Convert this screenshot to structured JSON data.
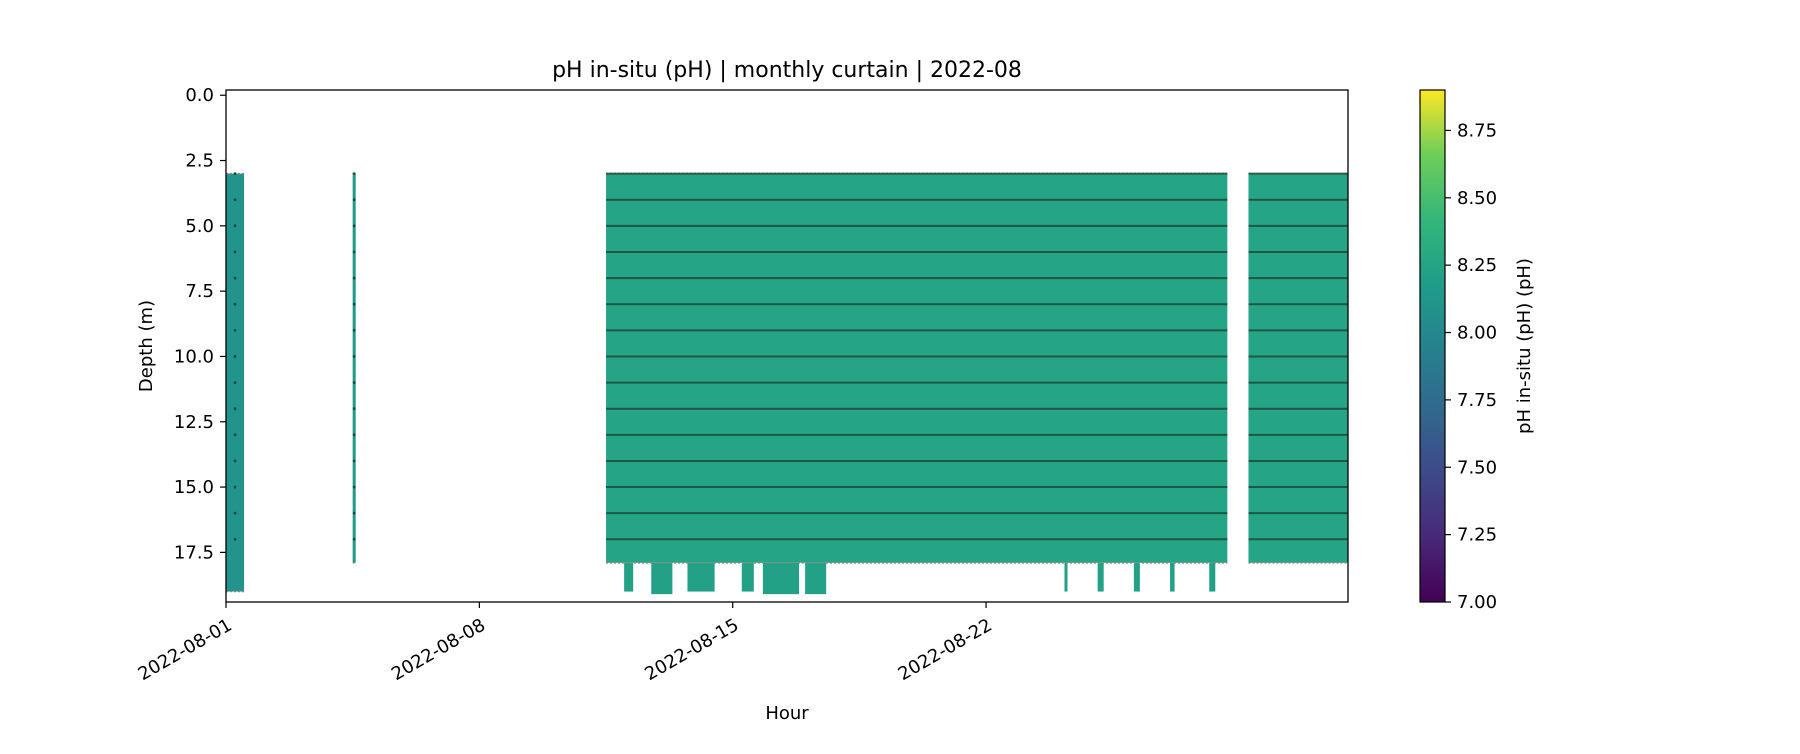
{
  "chart_data": {
    "type": "heatmap",
    "title": "pH in-situ (pH) | monthly curtain | 2022-08",
    "xlabel": "Hour",
    "ylabel": "Depth (m)",
    "x_tick_labels": [
      "2022-08-01",
      "2022-08-08",
      "2022-08-15",
      "2022-08-22"
    ],
    "x_tick_dates": [
      "2022-08-01",
      "2022-08-08",
      "2022-08-15",
      "2022-08-22"
    ],
    "xlim": [
      "2022-08-01",
      "2022-09-01"
    ],
    "y_tick_labels": [
      "0.0",
      "2.5",
      "5.0",
      "7.5",
      "10.0",
      "12.5",
      "15.0",
      "17.5"
    ],
    "y_ticks": [
      0.0,
      2.5,
      5.0,
      7.5,
      10.0,
      12.5,
      15.0,
      17.5
    ],
    "ylim": [
      19.4,
      -0.2
    ],
    "y_inverted": true,
    "colorbar": {
      "label": "pH in-situ (pH) (pH)",
      "colormap": "viridis",
      "range": [
        7.0,
        8.9
      ],
      "tick_labels": [
        "7.00",
        "7.25",
        "7.50",
        "7.75",
        "8.00",
        "8.25",
        "8.50",
        "8.75"
      ],
      "ticks": [
        7.0,
        7.25,
        7.5,
        7.75,
        8.0,
        8.25,
        8.5,
        8.75
      ]
    },
    "measurement_depths": [
      3,
      4,
      5,
      6,
      7,
      8,
      9,
      10,
      11,
      12,
      13,
      14,
      15,
      16,
      17
    ],
    "data_blocks": [
      {
        "start": "2022-08-01",
        "end": "2022-08-01T12:00",
        "depth_top": 3.0,
        "depth_bottom": 19.0,
        "ph": 8.1
      },
      {
        "start": "2022-08-04T12:00",
        "end": "2022-08-04T14:00",
        "depth_top": 3.0,
        "depth_bottom": 17.9,
        "ph": 8.15
      },
      {
        "start": "2022-08-11T12:00",
        "end": "2022-08-28T16:00",
        "depth_top": 3.0,
        "depth_bottom": 17.9,
        "ph": 8.25
      },
      {
        "start": "2022-08-29T06:00",
        "end": "2022-09-01",
        "depth_top": 3.0,
        "depth_bottom": 17.9,
        "ph": 8.25
      }
    ],
    "deep_extensions": [
      {
        "start": "2022-08-12T00:00",
        "end": "2022-08-12T06:00",
        "depth_bottom": 19.0
      },
      {
        "start": "2022-08-12T18:00",
        "end": "2022-08-13T08:00",
        "depth_bottom": 19.1
      },
      {
        "start": "2022-08-13T18:00",
        "end": "2022-08-14T12:00",
        "depth_bottom": 19.0
      },
      {
        "start": "2022-08-15T06:00",
        "end": "2022-08-15T14:00",
        "depth_bottom": 19.0
      },
      {
        "start": "2022-08-15T20:00",
        "end": "2022-08-16T20:00",
        "depth_bottom": 19.1
      },
      {
        "start": "2022-08-17T00:00",
        "end": "2022-08-17T14:00",
        "depth_bottom": 19.1
      },
      {
        "start": "2022-08-24T04:00",
        "end": "2022-08-24T06:00",
        "depth_bottom": 19.0
      },
      {
        "start": "2022-08-25T02:00",
        "end": "2022-08-25T06:00",
        "depth_bottom": 19.0
      },
      {
        "start": "2022-08-26T02:00",
        "end": "2022-08-26T06:00",
        "depth_bottom": 19.0
      },
      {
        "start": "2022-08-27T02:00",
        "end": "2022-08-27T05:00",
        "depth_bottom": 19.0
      },
      {
        "start": "2022-08-28T04:00",
        "end": "2022-08-28T08:00",
        "depth_bottom": 19.0
      }
    ]
  }
}
